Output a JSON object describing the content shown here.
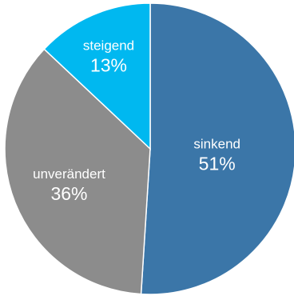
{
  "chart_data": {
    "type": "pie",
    "title": "",
    "start": "12 o'clock",
    "direction": "clockwise",
    "slices": [
      {
        "label": "sinkend",
        "value": 51,
        "display": "51%",
        "color": "#3b76a8"
      },
      {
        "label": "unverändert",
        "value": 36,
        "display": "36%",
        "color": "#8c8c8c"
      },
      {
        "label": "steigend",
        "value": 13,
        "display": "13%",
        "color": "#00b8f0"
      }
    ],
    "slice_border_color": "#ffffff"
  }
}
